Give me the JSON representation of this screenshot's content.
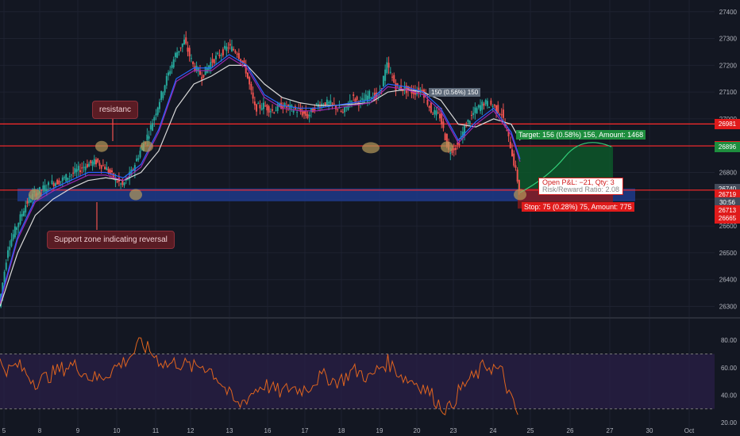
{
  "colors": {
    "background": "#131722",
    "grid": "#1e2230",
    "up_candle": "#26a69a",
    "down_candle": "#ef5350",
    "ema_fast": "#2962ff",
    "ema_mid": "#9c27b0",
    "ema_slow": "#d9d9d9",
    "rsi_line": "#e0641e",
    "rsi_band": "#2a1f47",
    "resistance_line": "#ff2a2a",
    "support_zone": "#1e3a8a",
    "target_box": "#0d5b2b",
    "stop_box": "#8c1a1a",
    "equity_line": "#33d17a",
    "marker": "#b59a5a"
  },
  "annotations": {
    "resistance_label": "resistanc",
    "support_label": "Support zone indicating reversal",
    "target_text": "Target: 156 (0.58%) 156, Amount: 1468",
    "stop_text": "Stop: 75 (0.28%) 75, Amount: 775",
    "pnl_text": "Open P&L: −21, Qty: 3",
    "rr_text": "Risk/Reward Ratio: 2.08",
    "grey_label": "150 (0.56%) 150"
  },
  "price_tags": [
    {
      "label": "26981",
      "price": 26981,
      "color": "#e01b1b"
    },
    {
      "label": "26899",
      "price": 26899,
      "color": "#e01b1b"
    },
    {
      "label": "26896",
      "price": 26896,
      "color": "#1e8e3e"
    },
    {
      "label": "26740",
      "price": 26740,
      "color": "#444b5a"
    },
    {
      "label": "26719",
      "price": 26719,
      "color": "#e01b1b"
    },
    {
      "label": "30:56",
      "price": 26690,
      "color": "#444b5a"
    },
    {
      "label": "26713",
      "price": 26660,
      "color": "#e01b1b"
    },
    {
      "label": "26665",
      "price": 26630,
      "color": "#e01b1b"
    }
  ],
  "chart_data": [
    {
      "type": "candlestick",
      "title": "",
      "ylim": [
        26260,
        27420
      ],
      "y_ticks": [
        26300,
        26400,
        26500,
        26600,
        26700,
        26800,
        26900,
        27000,
        27100,
        27200,
        27300,
        27400
      ],
      "x_ticks": [
        "5",
        "8",
        "9",
        "10",
        "11",
        "12",
        "13",
        "16",
        "17",
        "18",
        "19",
        "20",
        "23",
        "24",
        "25",
        "26",
        "27",
        "30",
        "Oct"
      ],
      "price_path": [
        [
          0,
          26300
        ],
        [
          1,
          26520
        ],
        [
          2,
          26600
        ],
        [
          3,
          26680
        ],
        [
          4,
          26720
        ],
        [
          5,
          26740
        ],
        [
          6,
          26760
        ],
        [
          7,
          26770
        ],
        [
          8,
          26790
        ],
        [
          9,
          26810
        ],
        [
          10,
          26830
        ],
        [
          11,
          26840
        ],
        [
          12,
          26820
        ],
        [
          13,
          26780
        ],
        [
          14,
          26750
        ],
        [
          15,
          26800
        ],
        [
          16,
          26880
        ],
        [
          17,
          26950
        ],
        [
          18,
          27050
        ],
        [
          19,
          27150
        ],
        [
          20,
          27240
        ],
        [
          21,
          27290
        ],
        [
          22,
          27200
        ],
        [
          23,
          27160
        ],
        [
          24,
          27210
        ],
        [
          25,
          27240
        ],
        [
          26,
          27270
        ],
        [
          27,
          27250
        ],
        [
          28,
          27180
        ],
        [
          29,
          27040
        ],
        [
          30,
          27050
        ],
        [
          31,
          27030
        ],
        [
          32,
          27050
        ],
        [
          33,
          27040
        ],
        [
          34,
          27030
        ],
        [
          35,
          27010
        ],
        [
          36,
          27050
        ],
        [
          37,
          27060
        ],
        [
          38,
          27050
        ],
        [
          39,
          27020
        ],
        [
          40,
          27080
        ],
        [
          41,
          27060
        ],
        [
          42,
          27090
        ],
        [
          43,
          27080
        ],
        [
          44,
          27200
        ],
        [
          45,
          27120
        ],
        [
          46,
          27110
        ],
        [
          47,
          27100
        ],
        [
          48,
          27110
        ],
        [
          49,
          27030
        ],
        [
          50,
          27010
        ],
        [
          51,
          26880
        ],
        [
          52,
          26900
        ],
        [
          53,
          26980
        ],
        [
          54,
          27030
        ],
        [
          55,
          27060
        ],
        [
          56,
          27050
        ],
        [
          57,
          27020
        ],
        [
          58,
          26900
        ],
        [
          59,
          26740
        ]
      ],
      "ema_fast": [
        [
          0,
          26320
        ],
        [
          2,
          26560
        ],
        [
          4,
          26700
        ],
        [
          6,
          26740
        ],
        [
          8,
          26770
        ],
        [
          10,
          26800
        ],
        [
          12,
          26800
        ],
        [
          14,
          26780
        ],
        [
          16,
          26830
        ],
        [
          18,
          26960
        ],
        [
          20,
          27150
        ],
        [
          22,
          27190
        ],
        [
          24,
          27190
        ],
        [
          26,
          27240
        ],
        [
          28,
          27200
        ],
        [
          30,
          27090
        ],
        [
          32,
          27050
        ],
        [
          34,
          27040
        ],
        [
          36,
          27040
        ],
        [
          38,
          27050
        ],
        [
          40,
          27060
        ],
        [
          42,
          27070
        ],
        [
          44,
          27130
        ],
        [
          46,
          27120
        ],
        [
          48,
          27100
        ],
        [
          50,
          27040
        ],
        [
          52,
          26920
        ],
        [
          54,
          26990
        ],
        [
          56,
          27040
        ],
        [
          58,
          26950
        ],
        [
          59,
          26850
        ]
      ],
      "ema_slow": [
        [
          0,
          26300
        ],
        [
          2,
          26500
        ],
        [
          4,
          26640
        ],
        [
          6,
          26700
        ],
        [
          8,
          26740
        ],
        [
          10,
          26770
        ],
        [
          12,
          26780
        ],
        [
          14,
          26770
        ],
        [
          16,
          26800
        ],
        [
          18,
          26880
        ],
        [
          20,
          27040
        ],
        [
          22,
          27130
        ],
        [
          24,
          27160
        ],
        [
          26,
          27200
        ],
        [
          28,
          27200
        ],
        [
          30,
          27130
        ],
        [
          32,
          27080
        ],
        [
          34,
          27060
        ],
        [
          36,
          27050
        ],
        [
          38,
          27050
        ],
        [
          40,
          27055
        ],
        [
          42,
          27060
        ],
        [
          44,
          27100
        ],
        [
          46,
          27110
        ],
        [
          48,
          27100
        ],
        [
          50,
          27070
        ],
        [
          52,
          26980
        ],
        [
          54,
          26970
        ],
        [
          56,
          27000
        ],
        [
          58,
          26980
        ],
        [
          59,
          26920
        ]
      ],
      "resistance_levels": [
        26899,
        26981
      ],
      "support_zone": [
        26710,
        26740
      ],
      "target_price": 26896,
      "stop_price": 26665,
      "entry_price": 26740
    },
    {
      "type": "line",
      "title": "",
      "ylim": [
        16,
        94
      ],
      "y_ticks": [
        20,
        40,
        60,
        80
      ],
      "band": [
        30,
        70
      ],
      "values": [
        [
          0,
          64
        ],
        [
          1,
          58
        ],
        [
          2,
          62
        ],
        [
          3,
          56
        ],
        [
          4,
          50
        ],
        [
          5,
          52
        ],
        [
          6,
          56
        ],
        [
          7,
          59
        ],
        [
          8,
          62
        ],
        [
          9,
          60
        ],
        [
          10,
          54
        ],
        [
          11,
          52
        ],
        [
          12,
          55
        ],
        [
          13,
          60
        ],
        [
          14,
          64
        ],
        [
          15,
          70
        ],
        [
          16,
          78
        ],
        [
          17,
          72
        ],
        [
          18,
          66
        ],
        [
          19,
          62
        ],
        [
          20,
          64
        ],
        [
          21,
          62
        ],
        [
          22,
          60
        ],
        [
          23,
          62
        ],
        [
          24,
          58
        ],
        [
          25,
          50
        ],
        [
          26,
          40
        ],
        [
          27,
          32
        ],
        [
          28,
          38
        ],
        [
          29,
          44
        ],
        [
          30,
          48
        ],
        [
          31,
          44
        ],
        [
          32,
          42
        ],
        [
          33,
          46
        ],
        [
          34,
          44
        ],
        [
          35,
          46
        ],
        [
          36,
          52
        ],
        [
          37,
          54
        ],
        [
          38,
          50
        ],
        [
          39,
          52
        ],
        [
          40,
          58
        ],
        [
          41,
          56
        ],
        [
          42,
          52
        ],
        [
          43,
          60
        ],
        [
          44,
          64
        ],
        [
          45,
          58
        ],
        [
          46,
          52
        ],
        [
          47,
          50
        ],
        [
          48,
          46
        ],
        [
          49,
          40
        ],
        [
          50,
          32
        ],
        [
          51,
          30
        ],
        [
          52,
          42
        ],
        [
          53,
          50
        ],
        [
          54,
          54
        ],
        [
          55,
          62
        ],
        [
          56,
          60
        ],
        [
          57,
          56
        ],
        [
          58,
          36
        ],
        [
          59,
          22
        ]
      ]
    }
  ]
}
